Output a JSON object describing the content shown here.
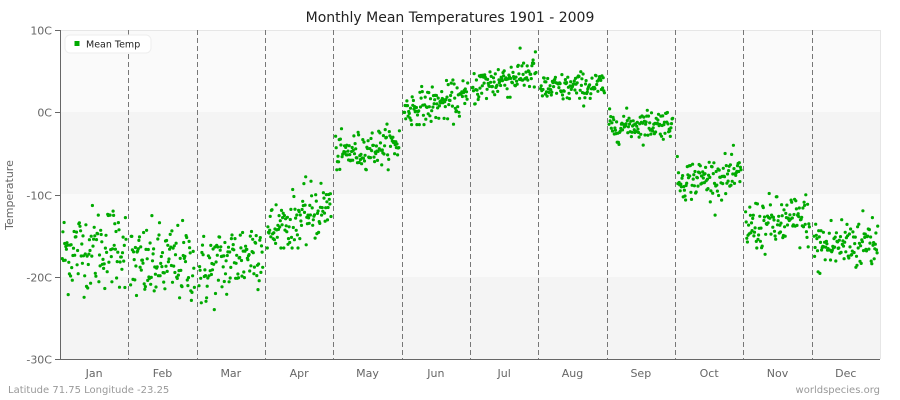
{
  "chart_data": {
    "type": "scatter",
    "title": "Monthly Mean Temperatures 1901 - 2009",
    "xlabel": "",
    "ylabel": "Temperature",
    "ylim": [
      -30,
      10
    ],
    "y_ticks": [
      {
        "value": 10,
        "label": "10C"
      },
      {
        "value": 0,
        "label": "0C"
      },
      {
        "value": -10,
        "label": "-10C"
      },
      {
        "value": -20,
        "label": "-20C"
      },
      {
        "value": -30,
        "label": "-30C"
      }
    ],
    "categories": [
      "Jan",
      "Feb",
      "Mar",
      "Apr",
      "May",
      "Jun",
      "Jul",
      "Aug",
      "Sep",
      "Oct",
      "Nov",
      "Dec"
    ],
    "grid": {
      "vertical_dashed_month_separators": true,
      "horizontal_bands": true
    },
    "legend": {
      "position": "top-left",
      "entries": [
        "Mean Temp"
      ]
    },
    "series": [
      {
        "name": "Mean Temp",
        "color": "#00aa00",
        "points_per_month": 109,
        "years": "1901 - 2009",
        "monthly_mean_approx": [
          -16.5,
          -18.5,
          -18.0,
          -13.0,
          -4.5,
          1.0,
          4.0,
          3.0,
          -1.5,
          -8.0,
          -13.5,
          -16.0
        ],
        "monthly_spread_approx": [
          3.2,
          3.0,
          2.9,
          2.2,
          1.4,
          1.4,
          1.4,
          1.1,
          1.1,
          1.5,
          2.0,
          2.2
        ],
        "monthly_min_approx": [
          -22.5,
          -24.5,
          -24.0,
          -16.5,
          -7.0,
          -1.5,
          1.0,
          0.5,
          -4.0,
          -12.5,
          -19.5,
          -21.0
        ],
        "monthly_max_approx": [
          -7.3,
          -11.5,
          -11.5,
          -7.7,
          -0.5,
          5.0,
          7.8,
          6.2,
          1.3,
          -4.0,
          -7.5,
          -9.0
        ],
        "monthly_trend_approx": [
          1.0,
          0.4,
          3.5,
          3.5,
          1.5,
          1.5,
          2.0,
          0.5,
          0.5,
          0.5,
          1.0,
          1.0
        ]
      }
    ]
  },
  "legend": {
    "label": "Mean Temp",
    "color": "#00aa00"
  },
  "footer": {
    "location": "Latitude 71.75 Longitude -23.25",
    "source": "worldspecies.org"
  },
  "colors": {
    "point": "#00aa00",
    "band_light": "#fafafa",
    "band_dark": "#f4f4f4",
    "axis": "#666666",
    "separator": "#777777"
  }
}
